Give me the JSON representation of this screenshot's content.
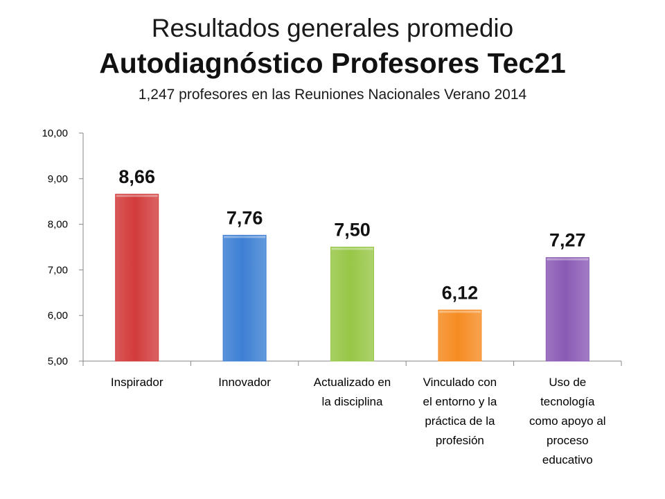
{
  "header": {
    "title": "Resultados generales promedio",
    "subtitle": "Autodiagnóstico  Profesores Tec21",
    "caption": "1,247 profesores en las Reuniones Nacionales Verano 2014"
  },
  "chart_data": {
    "type": "bar",
    "title": "Autodiagnóstico  Profesores Tec21",
    "xlabel": "",
    "ylabel": "",
    "ylim": [
      5,
      10
    ],
    "yticks": [
      "5,00",
      "6,00",
      "7,00",
      "8,00",
      "9,00",
      "10,00"
    ],
    "ytick_values": [
      5,
      6,
      7,
      8,
      9,
      10
    ],
    "categories": [
      [
        "Inspirador"
      ],
      [
        "Innovador"
      ],
      [
        "Actualizado en",
        "la disciplina"
      ],
      [
        "Vinculado con",
        "el entorno y la",
        "práctica de la",
        "profesión"
      ],
      [
        "Uso de",
        "tecnología",
        "como apoyo al",
        "proceso",
        "educativo"
      ]
    ],
    "values": [
      8.66,
      7.76,
      7.5,
      6.12,
      7.27
    ],
    "data_labels": [
      "8,66",
      "7,76",
      "7,50",
      "6,12",
      "7,27"
    ],
    "colors": [
      "#d23b3b",
      "#3d7fd3",
      "#97c747",
      "#f58c22",
      "#8a5bb5"
    ],
    "grid": false,
    "legend": "none"
  }
}
